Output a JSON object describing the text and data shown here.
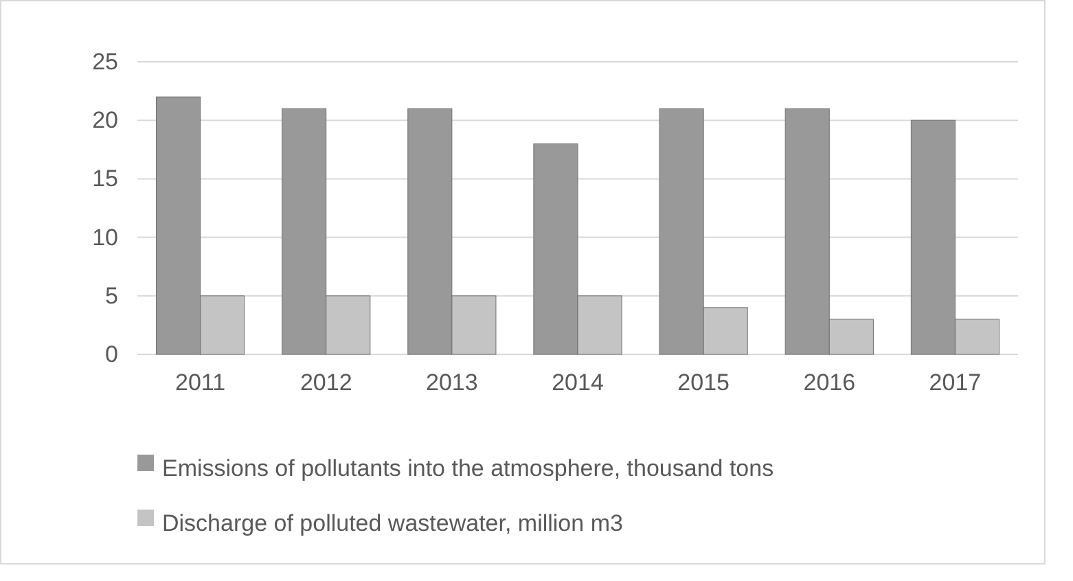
{
  "chart_data": {
    "type": "bar",
    "categories": [
      "2011",
      "2012",
      "2013",
      "2014",
      "2015",
      "2016",
      "2017"
    ],
    "series": [
      {
        "name": "Emissions of pollutants into the atmosphere, thousand tons",
        "color": "#999999",
        "values": [
          22,
          21,
          21,
          18,
          21,
          21,
          20
        ]
      },
      {
        "name": "Discharge of polluted wastewater, million m3",
        "color": "#c4c4c4",
        "values": [
          5,
          5,
          5,
          5,
          4,
          3,
          3
        ]
      }
    ],
    "ylim": [
      0,
      25
    ],
    "yticks": [
      0,
      5,
      10,
      15,
      20,
      25
    ],
    "grid": "y",
    "legend": "bottom"
  }
}
